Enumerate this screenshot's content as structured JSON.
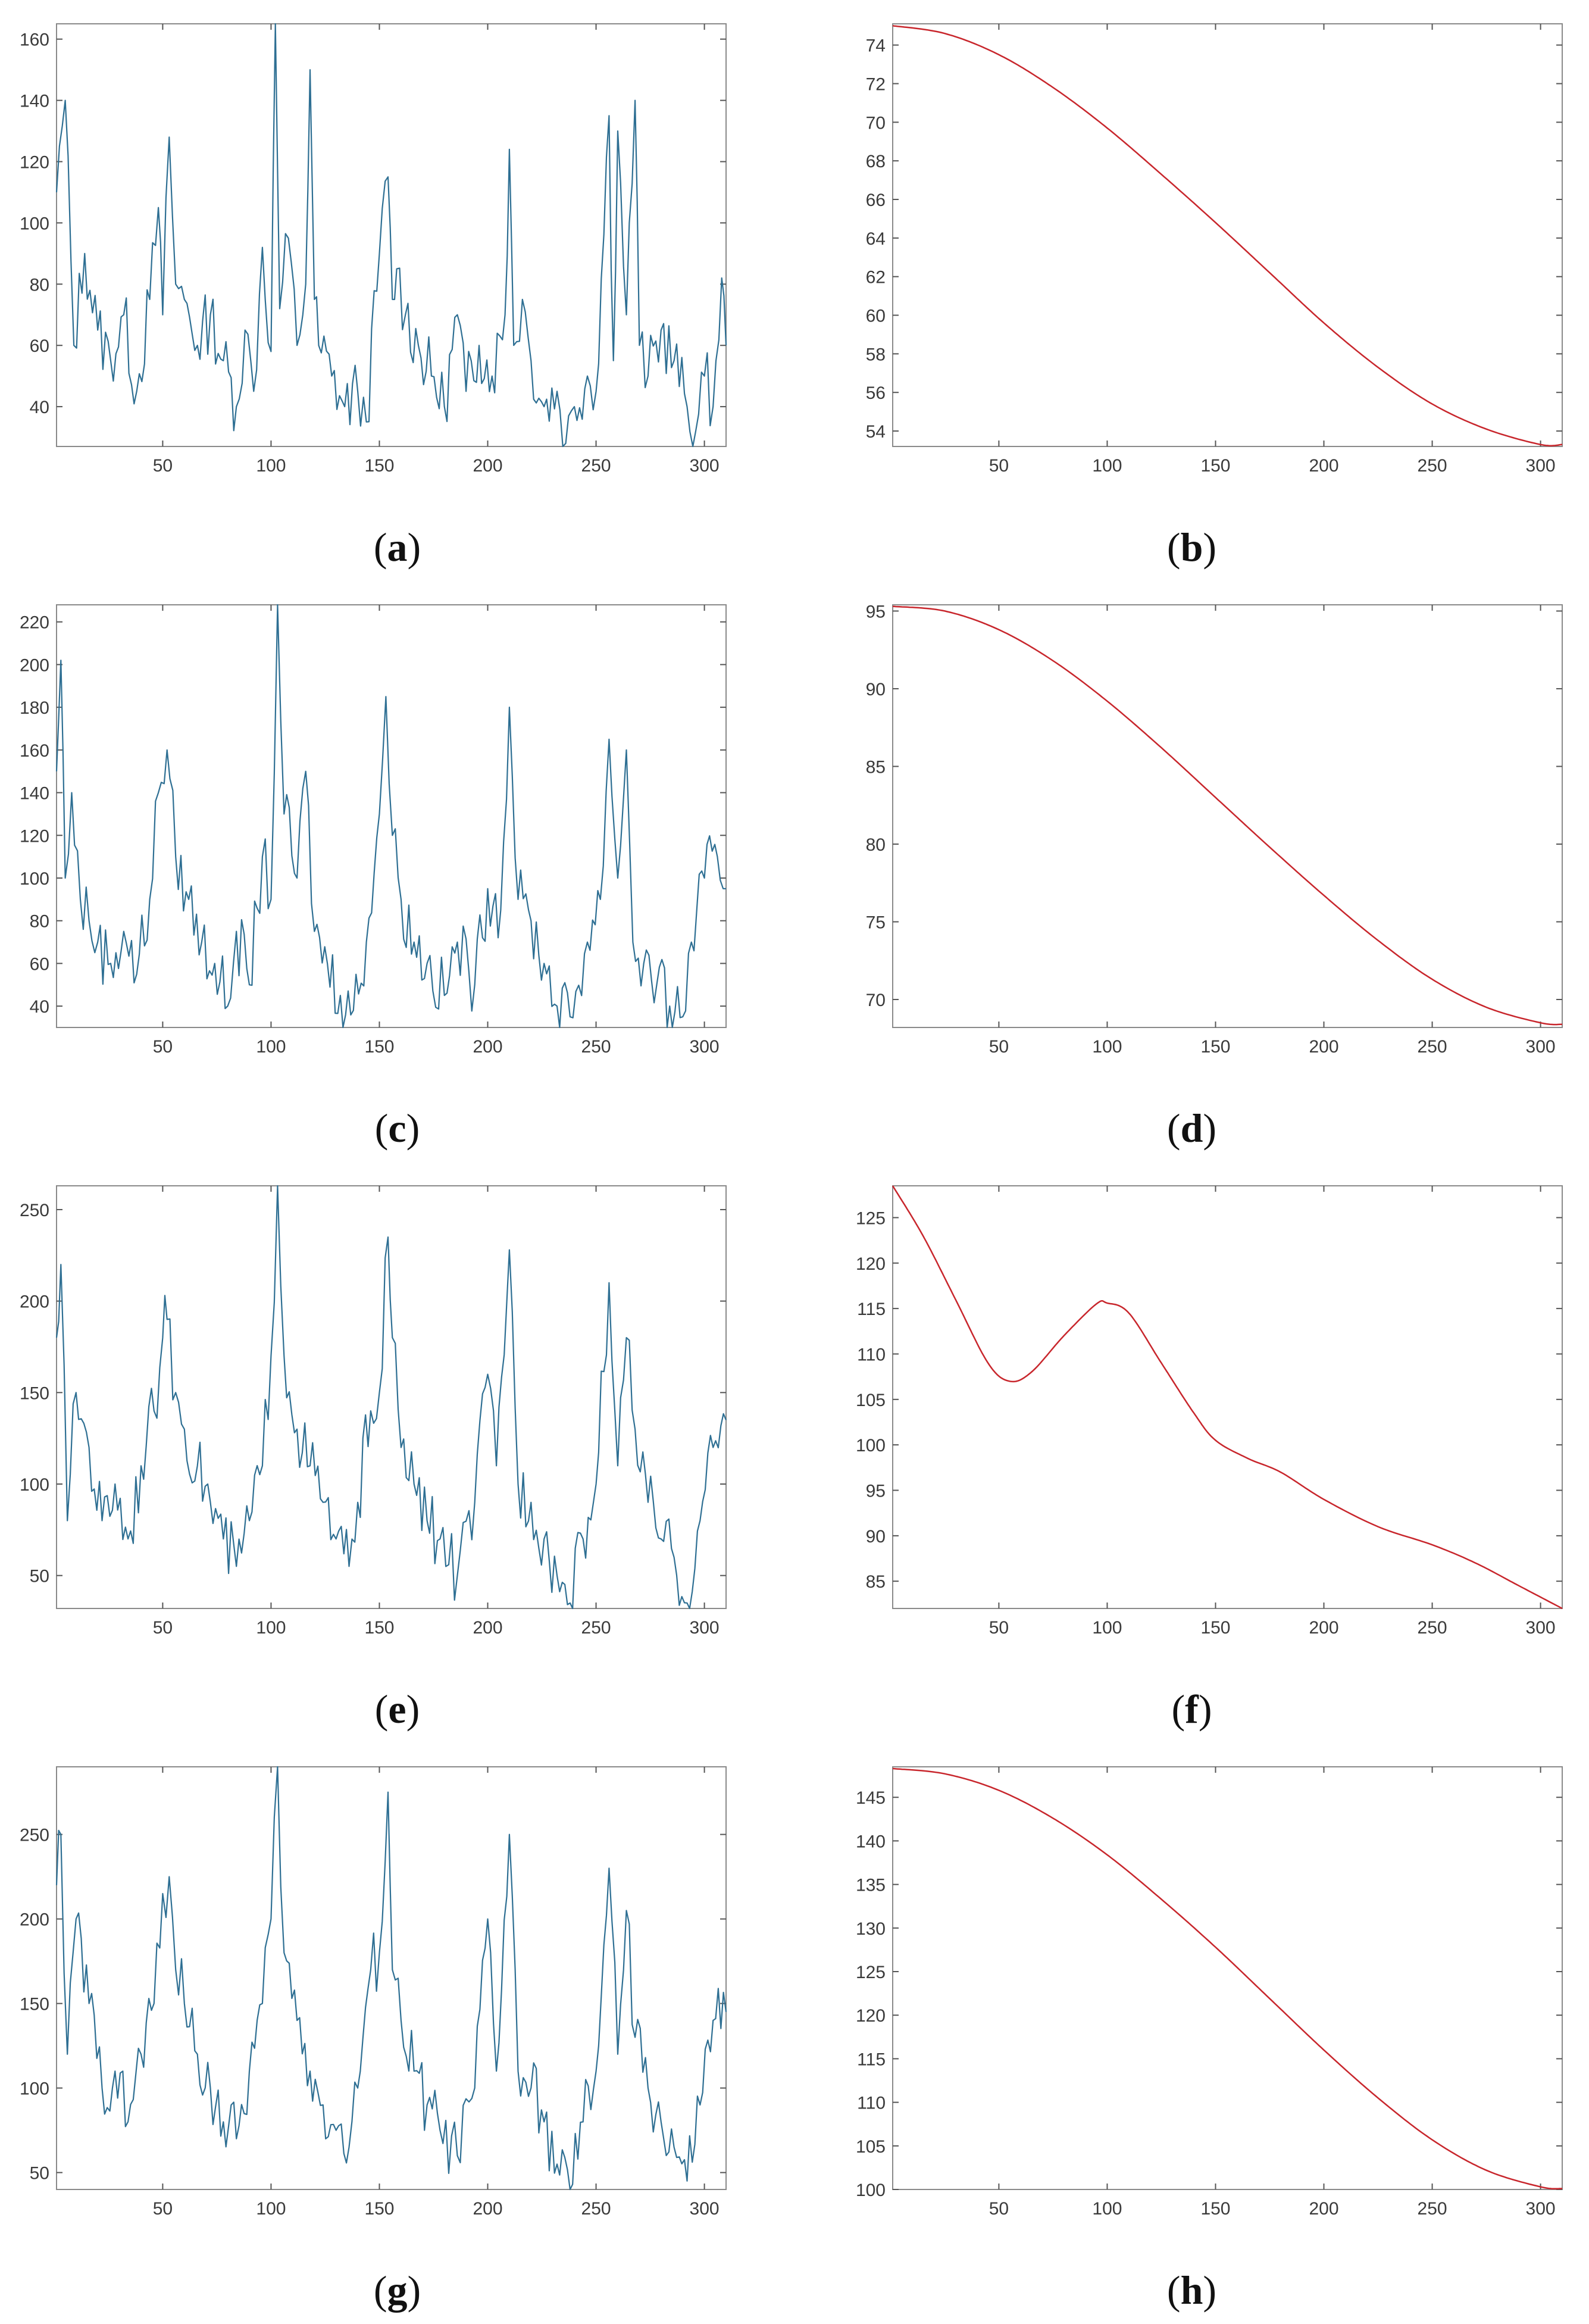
{
  "colors": {
    "left_series": "#2e6f93",
    "right_series": "#c8262c",
    "axis": "#555555",
    "frame": "#8a8a8a"
  },
  "chart_data": [
    {
      "id": "a",
      "type": "line",
      "caption_letter": "a",
      "xlim": [
        1,
        310
      ],
      "ylim": [
        27,
        165
      ],
      "xticks": [
        50,
        100,
        150,
        200,
        250,
        300
      ],
      "yticks": [
        40,
        60,
        80,
        100,
        120,
        140,
        160
      ],
      "series": [
        {
          "name": "a",
          "kind": "noisy",
          "x": [
            1,
            5,
            9,
            14,
            20,
            26,
            32,
            38,
            44,
            48,
            50,
            53,
            56,
            60,
            66,
            72,
            78,
            84,
            88,
            92,
            96,
            100,
            102,
            104,
            108,
            112,
            116,
            118,
            120,
            122,
            128,
            134,
            140,
            144,
            150,
            154,
            156,
            158,
            162,
            168,
            174,
            180,
            186,
            190,
            196,
            202,
            208,
            210,
            212,
            216,
            220,
            226,
            232,
            236,
            240,
            246,
            250,
            256,
            258,
            260,
            264,
            268,
            270,
            274,
            280,
            286,
            292,
            296,
            300,
            304,
            308,
            310
          ],
          "values": [
            110,
            140,
            60,
            90,
            65,
            55,
            70,
            45,
            75,
            105,
            70,
            128,
            80,
            75,
            60,
            70,
            55,
            40,
            65,
            45,
            92,
            58,
            165,
            72,
            95,
            60,
            80,
            150,
            75,
            60,
            50,
            40,
            45,
            35,
            90,
            115,
            75,
            85,
            70,
            60,
            50,
            40,
            70,
            45,
            60,
            50,
            70,
            124,
            60,
            75,
            55,
            40,
            45,
            28,
            40,
            50,
            45,
            135,
            55,
            130,
            70,
            140,
            60,
            50,
            65,
            55,
            40,
            32,
            50,
            40,
            82,
            60
          ]
        }
      ]
    },
    {
      "id": "b",
      "type": "line",
      "caption_letter": "b",
      "xlim": [
        1,
        310
      ],
      "ylim": [
        53.2,
        75.1
      ],
      "xticks": [
        50,
        100,
        150,
        200,
        250,
        300
      ],
      "yticks": [
        54,
        56,
        58,
        60,
        62,
        64,
        66,
        68,
        70,
        72,
        74
      ],
      "series": [
        {
          "name": "b",
          "kind": "smooth",
          "x": [
            1,
            25,
            50,
            75,
            100,
            125,
            150,
            175,
            200,
            225,
            250,
            275,
            300,
            310
          ],
          "values": [
            75,
            74.6,
            73.5,
            71.8,
            69.7,
            67.3,
            64.8,
            62.2,
            59.6,
            57.3,
            55.4,
            54.1,
            53.3,
            53.3
          ]
        }
      ]
    },
    {
      "id": "c",
      "type": "line",
      "caption_letter": "c",
      "xlim": [
        1,
        310
      ],
      "ylim": [
        30,
        228
      ],
      "xticks": [
        50,
        100,
        150,
        200,
        250,
        300
      ],
      "yticks": [
        40,
        60,
        80,
        100,
        120,
        140,
        160,
        180,
        200,
        220
      ],
      "series": [
        {
          "name": "c",
          "kind": "noisy",
          "x": [
            1,
            3,
            5,
            8,
            12,
            16,
            20,
            26,
            32,
            38,
            44,
            48,
            52,
            56,
            62,
            68,
            74,
            80,
            84,
            90,
            96,
            100,
            103,
            106,
            112,
            116,
            120,
            126,
            132,
            138,
            144,
            150,
            153,
            156,
            160,
            166,
            172,
            180,
            186,
            194,
            200,
            206,
            210,
            214,
            220,
            226,
            232,
            238,
            246,
            252,
            256,
            260,
            264,
            267,
            272,
            278,
            284,
            290,
            294,
            300,
            306,
            310
          ],
          "values": [
            150,
            202,
            100,
            140,
            90,
            80,
            70,
            60,
            75,
            55,
            90,
            140,
            160,
            110,
            90,
            70,
            60,
            40,
            75,
            50,
            110,
            90,
            228,
            130,
            100,
            150,
            75,
            60,
            45,
            38,
            70,
            130,
            185,
            120,
            90,
            70,
            60,
            45,
            70,
            50,
            95,
            85,
            180,
            90,
            80,
            60,
            40,
            35,
            70,
            90,
            165,
            100,
            160,
            70,
            60,
            50,
            40,
            35,
            70,
            100,
            110,
            95
          ]
        }
      ]
    },
    {
      "id": "d",
      "type": "line",
      "caption_letter": "d",
      "xlim": [
        1,
        310
      ],
      "ylim": [
        68.2,
        95.4
      ],
      "xticks": [
        50,
        100,
        150,
        200,
        250,
        300
      ],
      "yticks": [
        70,
        75,
        80,
        85,
        90,
        95
      ],
      "series": [
        {
          "name": "d",
          "kind": "smooth",
          "x": [
            1,
            25,
            50,
            75,
            100,
            125,
            150,
            175,
            200,
            225,
            250,
            275,
            300,
            310
          ],
          "values": [
            95.3,
            95,
            93.8,
            91.8,
            89.2,
            86.2,
            83,
            79.8,
            76.7,
            73.8,
            71.3,
            69.5,
            68.5,
            68.4
          ]
        }
      ]
    },
    {
      "id": "e",
      "type": "line",
      "caption_letter": "e",
      "xlim": [
        1,
        310
      ],
      "ylim": [
        32,
        263
      ],
      "xticks": [
        50,
        100,
        150,
        200,
        250,
        300
      ],
      "yticks": [
        50,
        100,
        150,
        200,
        250
      ],
      "series": [
        {
          "name": "e",
          "kind": "noisy",
          "x": [
            1,
            3,
            6,
            10,
            16,
            22,
            28,
            34,
            40,
            46,
            50,
            52,
            56,
            60,
            66,
            72,
            78,
            84,
            90,
            96,
            100,
            103,
            106,
            112,
            118,
            124,
            130,
            136,
            140,
            146,
            150,
            154,
            156,
            160,
            166,
            172,
            178,
            186,
            194,
            200,
            204,
            210,
            214,
            220,
            226,
            232,
            238,
            244,
            250,
            256,
            260,
            264,
            268,
            274,
            280,
            286,
            292,
            298,
            304,
            310
          ],
          "values": [
            180,
            220,
            80,
            150,
            120,
            80,
            100,
            70,
            110,
            140,
            180,
            190,
            150,
            130,
            110,
            90,
            70,
            55,
            80,
            110,
            170,
            263,
            170,
            130,
            110,
            90,
            70,
            55,
            90,
            140,
            150,
            235,
            180,
            120,
            100,
            80,
            70,
            50,
            90,
            160,
            110,
            228,
            100,
            90,
            70,
            50,
            35,
            70,
            100,
            210,
            110,
            180,
            130,
            90,
            70,
            60,
            35,
            80,
            120,
            135
          ]
        }
      ]
    },
    {
      "id": "f",
      "type": "line",
      "caption_letter": "f",
      "xlim": [
        1,
        310
      ],
      "ylim": [
        82,
        128.5
      ],
      "xticks": [
        50,
        100,
        150,
        200,
        250,
        300
      ],
      "yticks": [
        85,
        90,
        95,
        100,
        105,
        110,
        115,
        120,
        125
      ],
      "series": [
        {
          "name": "f",
          "kind": "smooth",
          "x": [
            1,
            15,
            30,
            45,
            55,
            65,
            80,
            95,
            100,
            110,
            125,
            140,
            150,
            165,
            180,
            200,
            225,
            250,
            270,
            290,
            310
          ],
          "values": [
            128.5,
            123,
            116,
            109,
            107,
            108,
            112,
            115.5,
            115.6,
            114.5,
            109,
            103.5,
            100.5,
            98.5,
            97,
            94,
            91,
            89,
            87,
            84.5,
            82
          ]
        }
      ]
    },
    {
      "id": "g",
      "type": "line",
      "caption_letter": "g",
      "xlim": [
        1,
        310
      ],
      "ylim": [
        40,
        290
      ],
      "xticks": [
        50,
        100,
        150,
        200,
        250,
        300
      ],
      "yticks": [
        50,
        100,
        150,
        200,
        250
      ],
      "series": [
        {
          "name": "g",
          "kind": "noisy",
          "x": [
            1,
            3,
            6,
            10,
            16,
            22,
            28,
            34,
            40,
            46,
            50,
            53,
            56,
            60,
            66,
            72,
            78,
            84,
            90,
            96,
            100,
            103,
            106,
            112,
            118,
            124,
            130,
            136,
            140,
            146,
            150,
            154,
            156,
            160,
            166,
            172,
            178,
            186,
            194,
            200,
            204,
            210,
            214,
            220,
            226,
            232,
            238,
            244,
            250,
            256,
            260,
            264,
            268,
            274,
            280,
            286,
            292,
            298,
            304,
            310
          ],
          "values": [
            220,
            250,
            120,
            200,
            150,
            100,
            110,
            80,
            120,
            150,
            215,
            225,
            170,
            150,
            120,
            100,
            80,
            70,
            110,
            150,
            200,
            290,
            180,
            140,
            110,
            90,
            75,
            65,
            100,
            170,
            180,
            275,
            170,
            140,
            110,
            90,
            75,
            60,
            100,
            200,
            110,
            250,
            110,
            100,
            80,
            55,
            40,
            80,
            110,
            230,
            120,
            205,
            130,
            100,
            80,
            65,
            45,
            90,
            140,
            145
          ]
        }
      ]
    },
    {
      "id": "h",
      "type": "line",
      "caption_letter": "h",
      "xlim": [
        1,
        310
      ],
      "ylim": [
        100,
        148.5
      ],
      "xticks": [
        50,
        100,
        150,
        200,
        250,
        300
      ],
      "yticks": [
        100,
        105,
        110,
        115,
        120,
        125,
        130,
        135,
        140,
        145
      ],
      "series": [
        {
          "name": "h",
          "kind": "smooth",
          "x": [
            1,
            25,
            50,
            75,
            100,
            125,
            150,
            175,
            200,
            225,
            250,
            275,
            300,
            310
          ],
          "values": [
            148.3,
            147.7,
            145.8,
            142.6,
            138.4,
            133.3,
            127.8,
            121.9,
            116,
            110.5,
            105.7,
            102.2,
            100.3,
            100.1
          ]
        }
      ]
    }
  ]
}
